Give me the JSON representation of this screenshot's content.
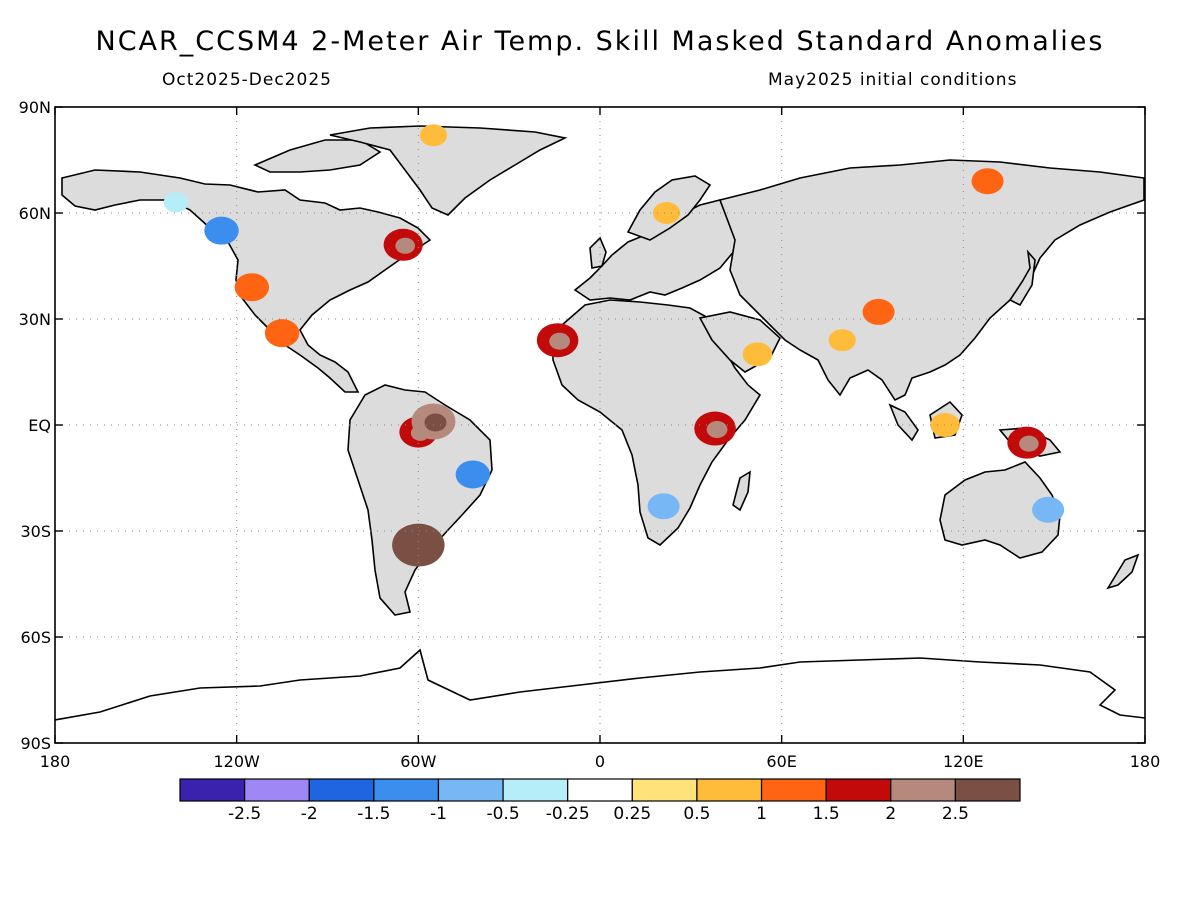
{
  "header": {
    "title": "NCAR_CCSM4 2-Meter Air Temp. Skill Masked Standard Anomalies",
    "period": "Oct2025-Dec2025",
    "init": "May2025 initial conditions"
  },
  "map": {
    "projection": "equirectangular",
    "lon_range": [
      -180,
      180
    ],
    "lat_range": [
      -90,
      90
    ],
    "gridlines": "dotted",
    "land_color": "#dcdcdc",
    "ocean_color": "#ffffff",
    "lon_ticks": [
      {
        "value": -180,
        "label": "180"
      },
      {
        "value": -120,
        "label": "120W"
      },
      {
        "value": -60,
        "label": "60W"
      },
      {
        "value": 0,
        "label": "0"
      },
      {
        "value": 60,
        "label": "60E"
      },
      {
        "value": 120,
        "label": "120E"
      },
      {
        "value": 180,
        "label": "180"
      }
    ],
    "lat_ticks": [
      {
        "value": 90,
        "label": "90N"
      },
      {
        "value": 60,
        "label": "60N"
      },
      {
        "value": 30,
        "label": "30N"
      },
      {
        "value": 0,
        "label": "EQ"
      },
      {
        "value": -30,
        "label": "30S"
      },
      {
        "value": -60,
        "label": "60S"
      },
      {
        "value": -90,
        "label": "90S"
      }
    ]
  },
  "legend": {
    "colors": [
      "#3a22ae",
      "#9f88f5",
      "#1f64e0",
      "#3b8eee",
      "#78b7f5",
      "#b5edf8",
      "#ffffff",
      "#ffe37a",
      "#ffbc3a",
      "#ff6413",
      "#c30a0a",
      "#b58a7c",
      "#7a5044"
    ],
    "labels": [
      "-2.5",
      "-2",
      "-1.5",
      "-1",
      "-0.5",
      "-0.25",
      "0.25",
      "0.5",
      "1",
      "1.5",
      "2",
      "2.5"
    ]
  },
  "anomaly_regions": [
    {
      "name": "western-us",
      "lon": -115,
      "lat": 39,
      "value": 1.2
    },
    {
      "name": "alaska-yukon",
      "lon": -140,
      "lat": 63,
      "value": -0.4
    },
    {
      "name": "western-canada",
      "lon": -125,
      "lat": 55,
      "value": -1.2
    },
    {
      "name": "eastern-canada",
      "lon": -65,
      "lat": 51,
      "value": 1.6
    },
    {
      "name": "mexico",
      "lon": -105,
      "lat": 26,
      "value": 1.2
    },
    {
      "name": "greenland",
      "lon": -55,
      "lat": 82,
      "value": 0.6
    },
    {
      "name": "amazon",
      "lon": -60,
      "lat": -2,
      "value": 1.5
    },
    {
      "name": "north-brazil",
      "lon": -55,
      "lat": 1,
      "value": 2.0
    },
    {
      "name": "east-brazil",
      "lon": -42,
      "lat": -14,
      "value": -1.2
    },
    {
      "name": "argentina",
      "lon": -60,
      "lat": -34,
      "value": 2.7
    },
    {
      "name": "northwest-africa",
      "lon": -14,
      "lat": 24,
      "value": 1.8
    },
    {
      "name": "east-africa",
      "lon": 38,
      "lat": -1,
      "value": 1.8
    },
    {
      "name": "southern-africa",
      "lon": 21,
      "lat": -23,
      "value": -1.0
    },
    {
      "name": "arabia",
      "lon": 52,
      "lat": 20,
      "value": 0.8
    },
    {
      "name": "tibet",
      "lon": 92,
      "lat": 32,
      "value": 1.0
    },
    {
      "name": "india",
      "lon": 80,
      "lat": 24,
      "value": 0.6
    },
    {
      "name": "scandinavia",
      "lon": 22,
      "lat": 60,
      "value": 0.6
    },
    {
      "name": "east-siberia",
      "lon": 128,
      "lat": 69,
      "value": 1.0
    },
    {
      "name": "borneo",
      "lon": 114,
      "lat": 0,
      "value": 0.8
    },
    {
      "name": "new-guinea",
      "lon": 141,
      "lat": -5,
      "value": 1.6
    },
    {
      "name": "east-australia",
      "lon": 148,
      "lat": -24,
      "value": -1.0
    }
  ]
}
